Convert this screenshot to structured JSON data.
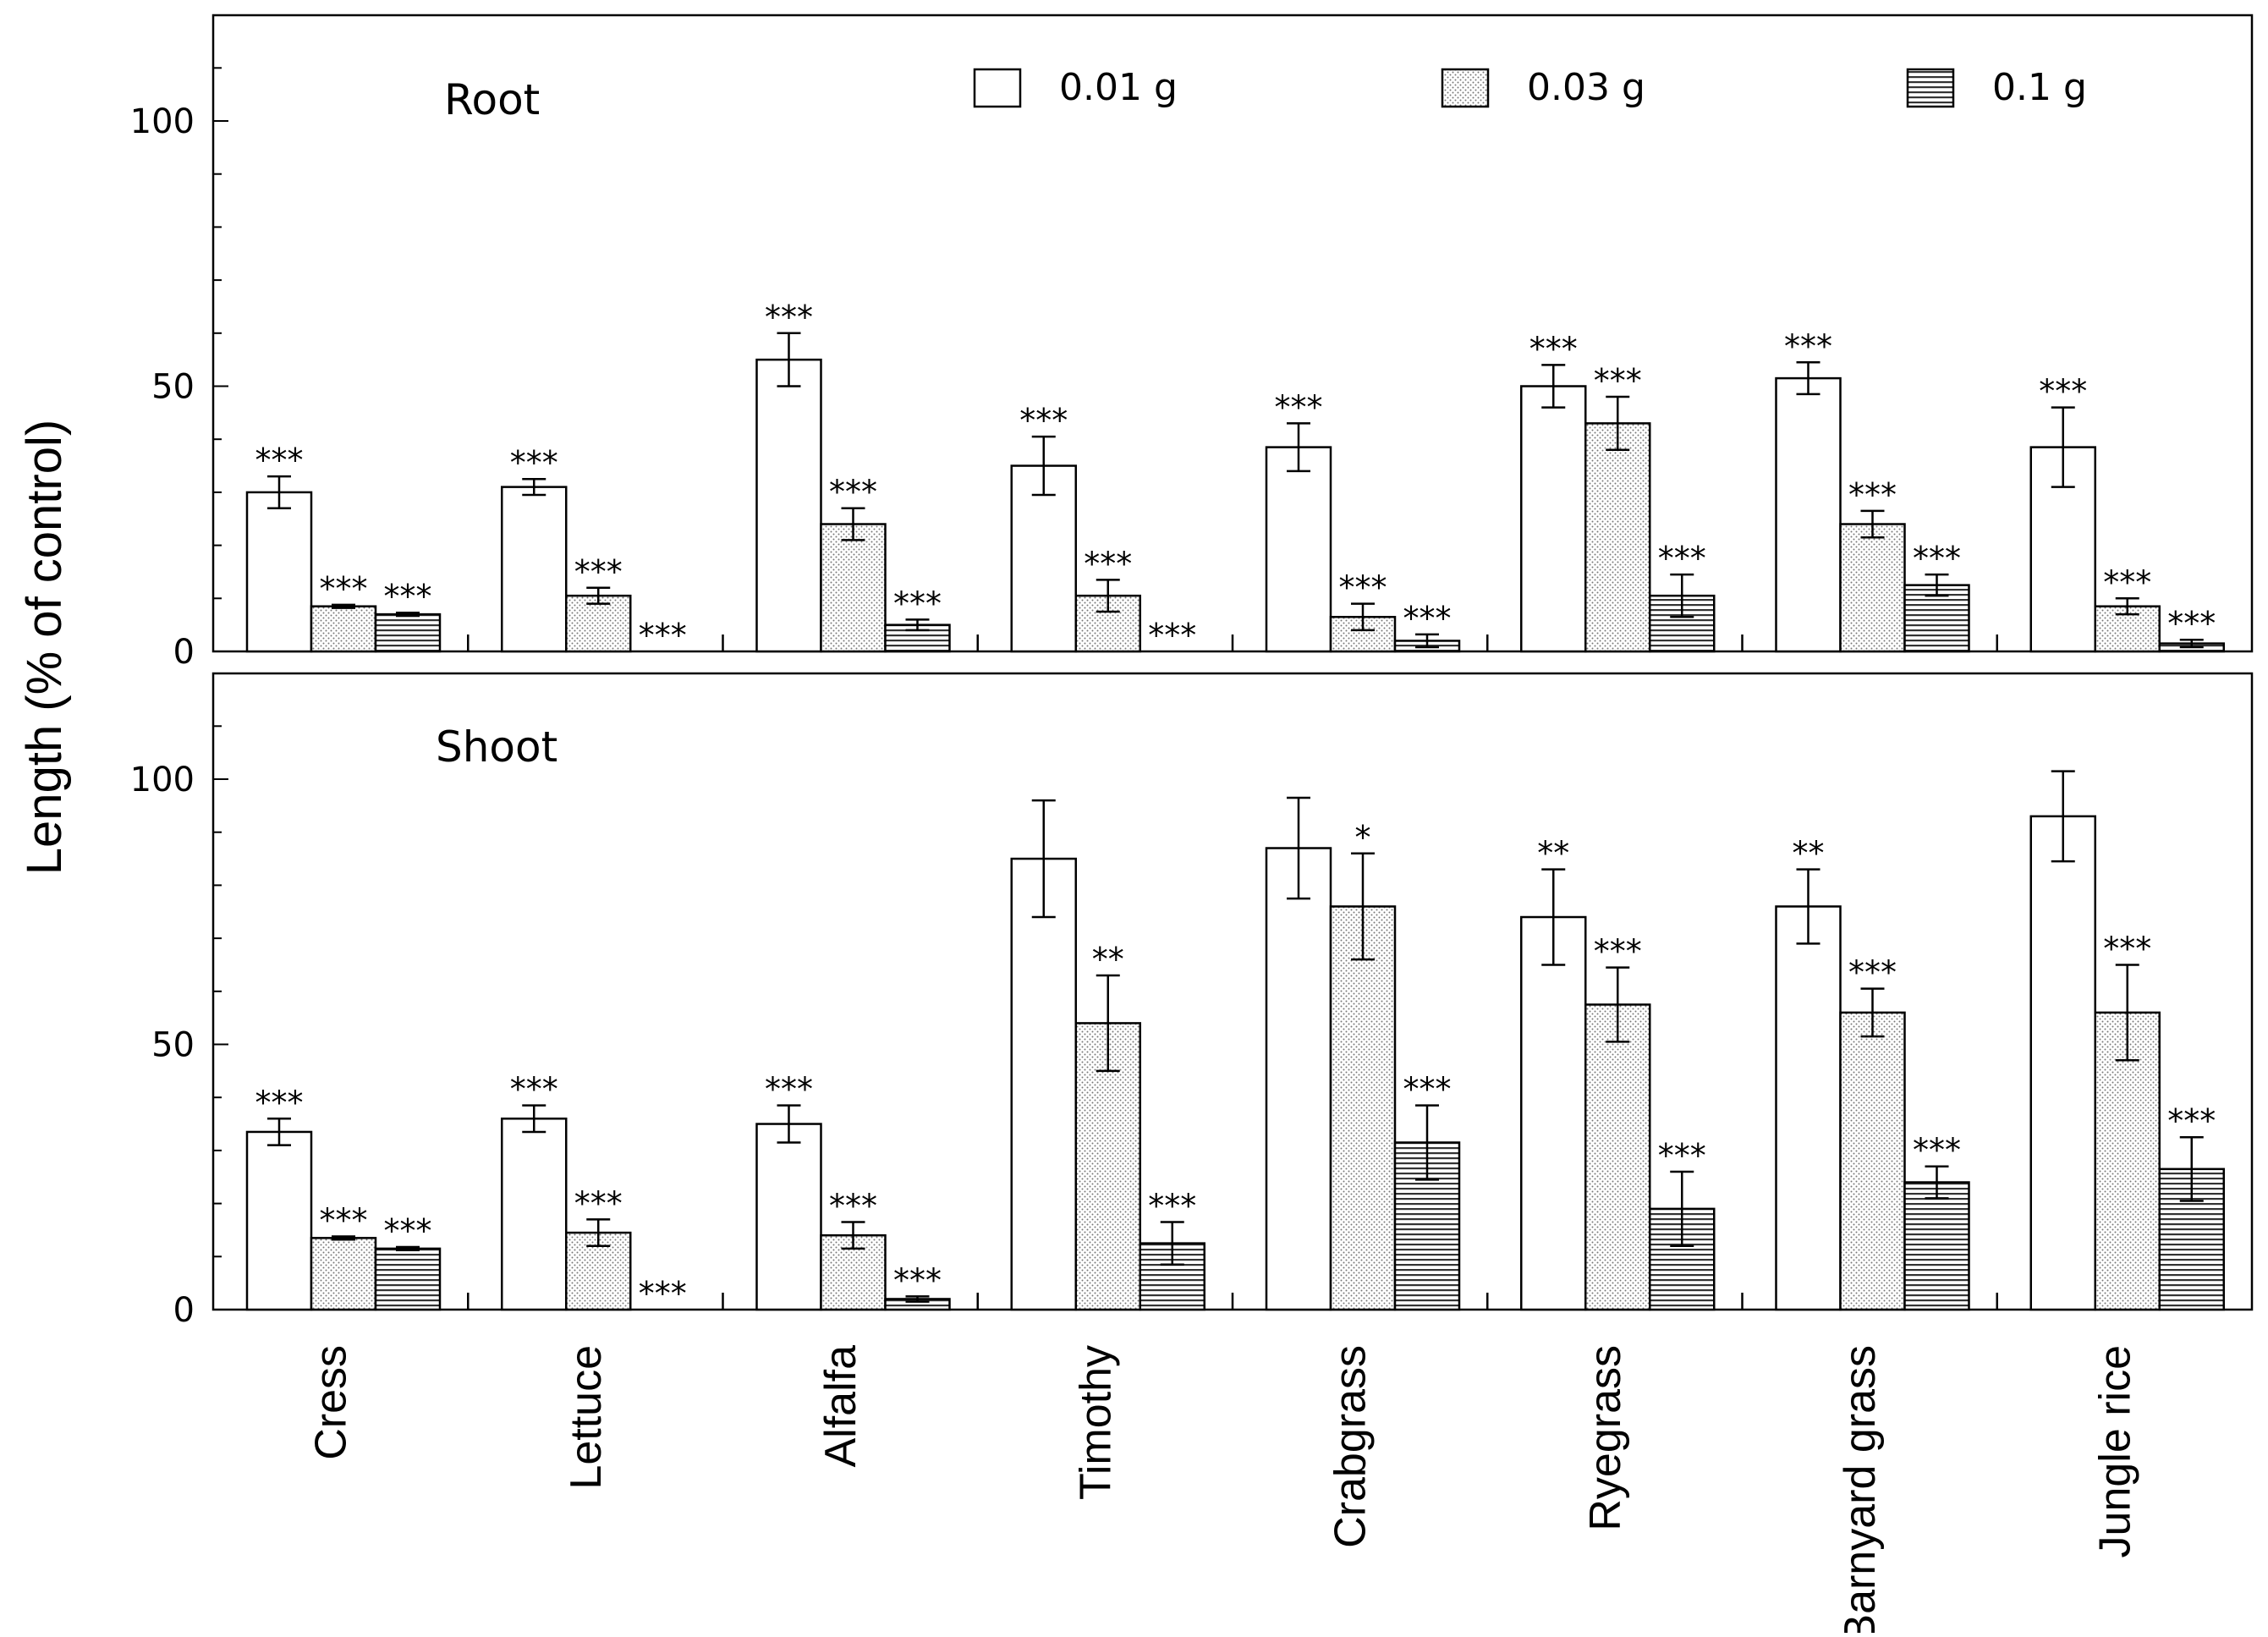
{
  "chart_data": {
    "type": "bar",
    "ylabel": "Length  (% of control)",
    "ylim": [
      0,
      120
    ],
    "yticks": [
      0,
      50,
      100
    ],
    "categories": [
      "Cress",
      "Lettuce",
      "Alfalfa",
      "Timothy",
      "Crabgrass",
      "Ryegrass",
      "Barnyard grass",
      "Jungle rice"
    ],
    "legend": [
      "0.01 g",
      "0.03 g",
      "0.1 g"
    ],
    "legend_position": "top",
    "panels": [
      {
        "title": "Root",
        "series": [
          {
            "name": "0.01 g",
            "values": [
              30,
              31,
              55,
              35,
              38.5,
              50,
              51.5,
              38.5
            ],
            "errors": [
              3,
              1.5,
              5,
              5.5,
              4.5,
              4,
              3,
              7.5
            ],
            "significance": [
              "***",
              "***",
              "***",
              "***",
              "***",
              "***",
              "***",
              "***"
            ]
          },
          {
            "name": "0.03 g",
            "values": [
              8.5,
              10.5,
              24,
              10.5,
              6.5,
              43,
              24,
              8.5
            ],
            "errors": [
              0.3,
              1.5,
              3,
              3,
              2.5,
              5,
              2.5,
              1.5
            ],
            "significance": [
              "***",
              "***",
              "***",
              "***",
              "***",
              "***",
              "***",
              "***"
            ]
          },
          {
            "name": "0.1 g",
            "values": [
              7,
              0,
              5,
              0,
              2,
              10.5,
              12.5,
              1.5
            ],
            "errors": [
              0.3,
              0,
              1,
              0,
              1.2,
              4,
              2,
              0.7
            ],
            "significance": [
              "***",
              "***",
              "***",
              "***",
              "***",
              "***",
              "***",
              "***"
            ]
          }
        ]
      },
      {
        "title": "Shoot",
        "series": [
          {
            "name": "0.01 g",
            "values": [
              33.5,
              36,
              35,
              85,
              87,
              74,
              76,
              93
            ],
            "errors": [
              2.5,
              2.5,
              3.5,
              11,
              9.5,
              9,
              7,
              8.5
            ],
            "significance": [
              "***",
              "***",
              "***",
              "",
              "",
              "**",
              "**",
              ""
            ]
          },
          {
            "name": "0.03 g",
            "values": [
              13.5,
              14.5,
              14,
              54,
              76,
              57.5,
              56,
              56
            ],
            "errors": [
              0.3,
              2.5,
              2.5,
              9,
              10,
              7,
              4.5,
              9
            ],
            "significance": [
              "***",
              "***",
              "***",
              "**",
              "*",
              "***",
              "***",
              "***"
            ]
          },
          {
            "name": "0.1 g",
            "values": [
              11.5,
              0,
              2,
              12.5,
              31.5,
              19,
              24,
              26.5
            ],
            "errors": [
              0.3,
              0,
              0.5,
              4,
              7,
              7,
              3,
              6
            ],
            "significance": [
              "***",
              "***",
              "***",
              "***",
              "***",
              "***",
              "***",
              "***"
            ]
          }
        ]
      }
    ]
  }
}
